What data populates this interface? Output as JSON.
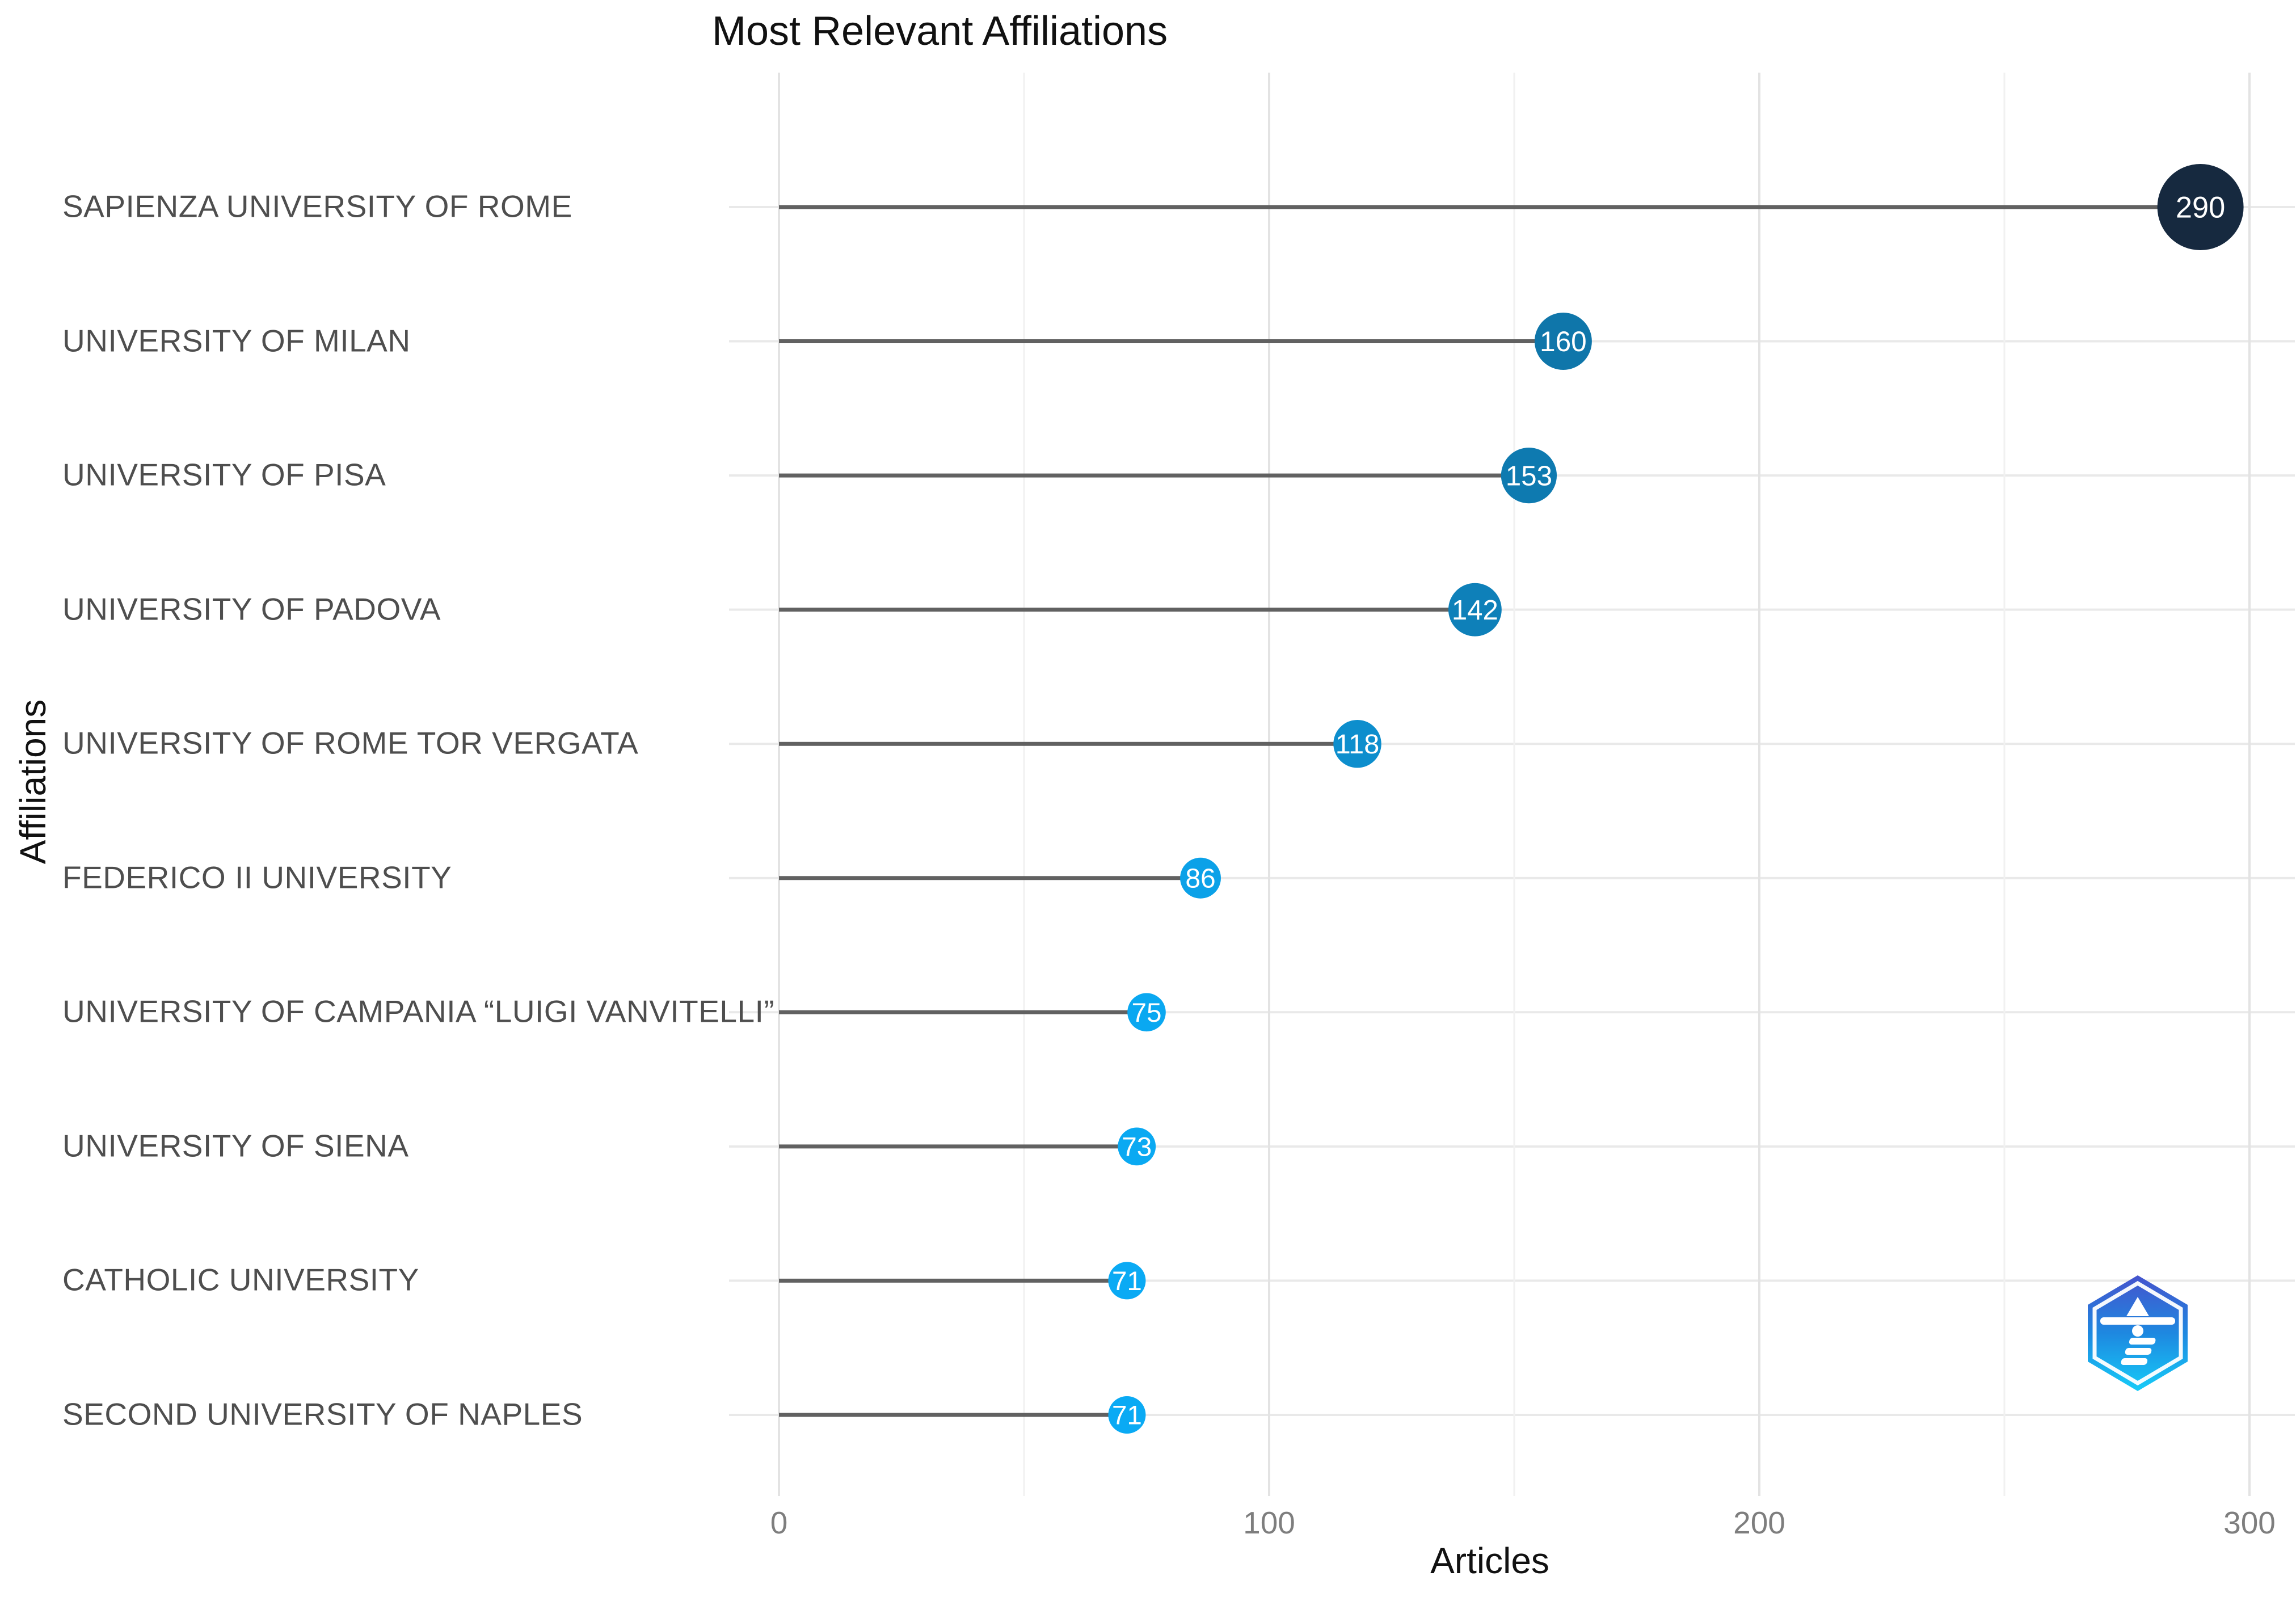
{
  "chart": {
    "title": "Most Relevant Affiliations",
    "xlabel": "Articles",
    "ylabel": "Affiliations"
  },
  "chart_data": {
    "type": "lollipop",
    "orientation": "horizontal",
    "title": "Most Relevant Affiliations",
    "xlabel": "Articles",
    "ylabel": "Affiliations",
    "categories": [
      "SAPIENZA UNIVERSITY OF ROME",
      "UNIVERSITY OF MILAN",
      "UNIVERSITY OF PISA",
      "UNIVERSITY OF PADOVA",
      "UNIVERSITY OF ROME TOR VERGATA",
      "FEDERICO II UNIVERSITY",
      "UNIVERSITY OF CAMPANIA “LUIGI VANVITELLI”",
      "UNIVERSITY OF SIENA",
      "CATHOLIC UNIVERSITY",
      "SECOND UNIVERSITY OF NAPLES"
    ],
    "values": [
      290,
      160,
      153,
      142,
      118,
      86,
      75,
      73,
      71,
      71
    ],
    "x_ticks": [
      0,
      100,
      200,
      300
    ],
    "x_minor_ticks": [
      50,
      150,
      250
    ],
    "xlim": [
      -10,
      309
    ],
    "grid": true,
    "legend": false,
    "colors": {
      "point_low": "#0aaaf4",
      "point_high": "#16293f",
      "point_label": "#ffffff",
      "stem": "#616161",
      "grid_major": "#e3e3e3",
      "grid_minor": "#f1f1f1",
      "grid_row": "#e9e9e9"
    }
  },
  "logo": {
    "name": "bibliometrix-lighthouse-logo",
    "gradient_top": "#4553cd",
    "gradient_mid": "#1e88e0",
    "gradient_bottom": "#16ccf8"
  }
}
